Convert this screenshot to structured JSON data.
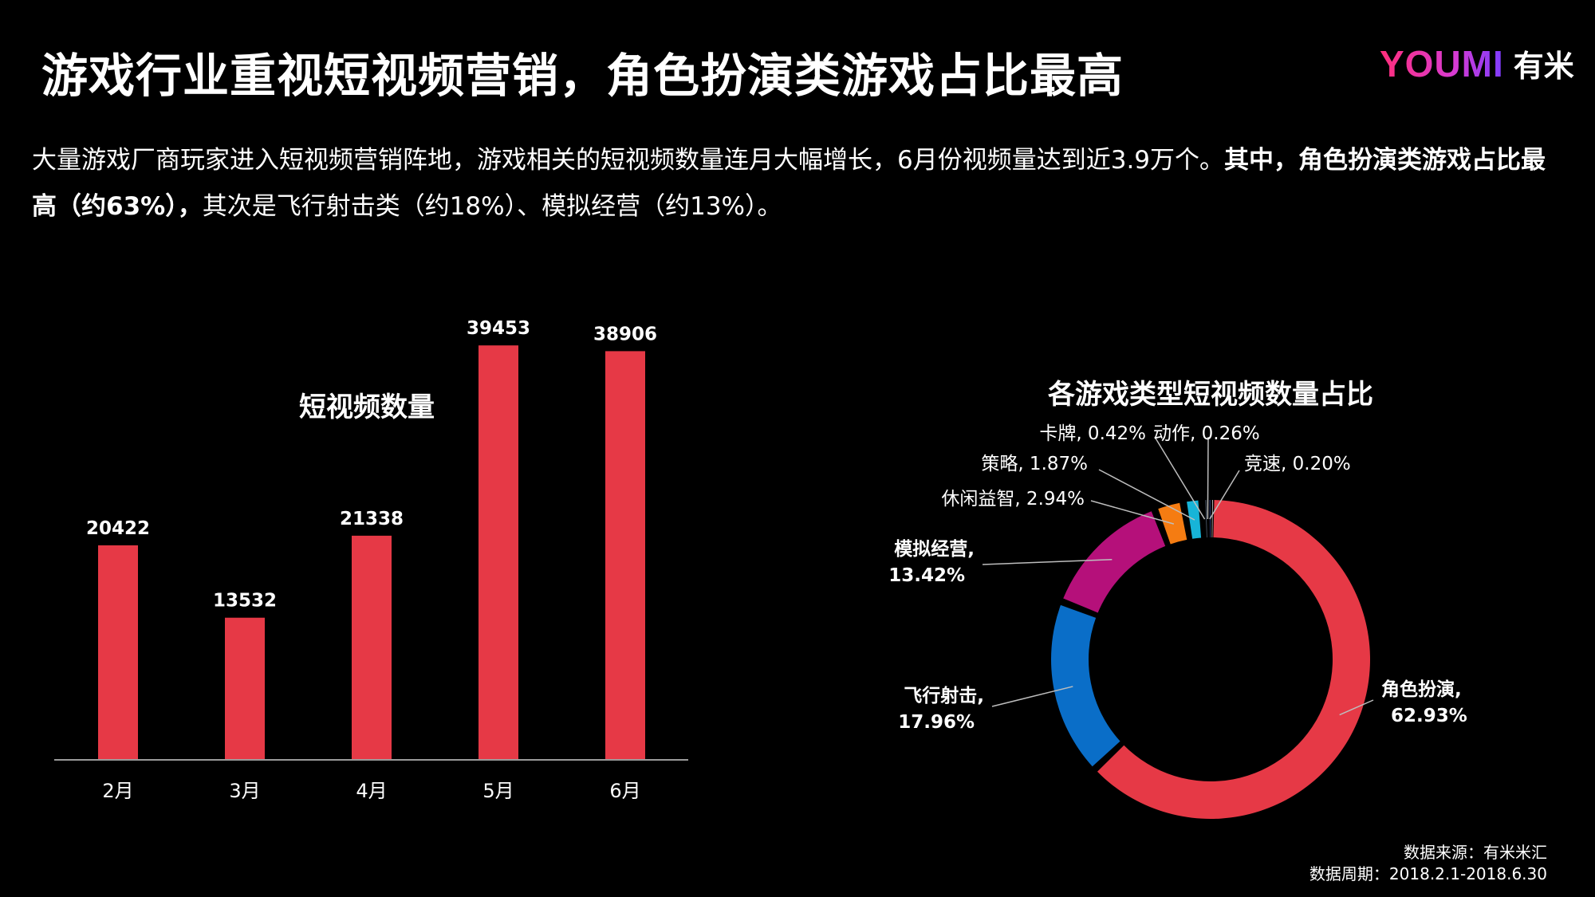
{
  "page": {
    "title": "游戏行业重视短视频营销，角色扮演类游戏占比最高",
    "logo_mark": "YOUMI",
    "logo_text": "有米",
    "intro_normal_1": "大量游戏厂商玩家进入短视频营销阵地，游戏相关的短视频数量连月大幅增长，6月份视频量达到近3.9万个。",
    "intro_bold_1": "其中，角色扮演类游戏占比最高（约63%），",
    "intro_normal_2": "其次是飞行射击类（约18%）、模拟经营（约13%）。",
    "source_line1": "数据来源：有米米汇",
    "source_line2": "数据周期：2018.2.1-2018.6.30"
  },
  "colors": {
    "bar": "#e63946",
    "axis": "#9a9a9a",
    "background": "#000000"
  },
  "chart_data": [
    {
      "type": "bar",
      "title": "短视频数量",
      "categories": [
        "2月",
        "3月",
        "4月",
        "5月",
        "6月"
      ],
      "values": [
        20422,
        13532,
        21338,
        39453,
        38906
      ],
      "ylim": [
        0,
        40000
      ],
      "grid": false,
      "legend": "none"
    },
    {
      "type": "pie",
      "title": "各游戏类型短视频数量占比",
      "style": "donut",
      "slices": [
        {
          "label": "角色扮演",
          "value": 62.93,
          "display": "62.93%",
          "color": "#e63946",
          "bold": true
        },
        {
          "label": "飞行射击",
          "value": 17.96,
          "display": "17.96%",
          "color": "#0a6ec8",
          "bold": true
        },
        {
          "label": "模拟经营",
          "value": 13.42,
          "display": "13.42%",
          "color": "#b5107a",
          "bold": true
        },
        {
          "label": "休闲益智",
          "value": 2.94,
          "display": "2.94%",
          "color": "#f57c12",
          "bold": false
        },
        {
          "label": "策略",
          "value": 1.87,
          "display": "1.87%",
          "color": "#17b4d8",
          "bold": false
        },
        {
          "label": "卡牌",
          "value": 0.42,
          "display": "0.42%",
          "color": "#5a6a7e",
          "bold": false
        },
        {
          "label": "动作",
          "value": 0.26,
          "display": "0.26%",
          "color": "#3a4a9a",
          "bold": false
        },
        {
          "label": "竞速",
          "value": 0.2,
          "display": "0.20%",
          "color": "#cfcfcf",
          "bold": false
        }
      ]
    }
  ]
}
